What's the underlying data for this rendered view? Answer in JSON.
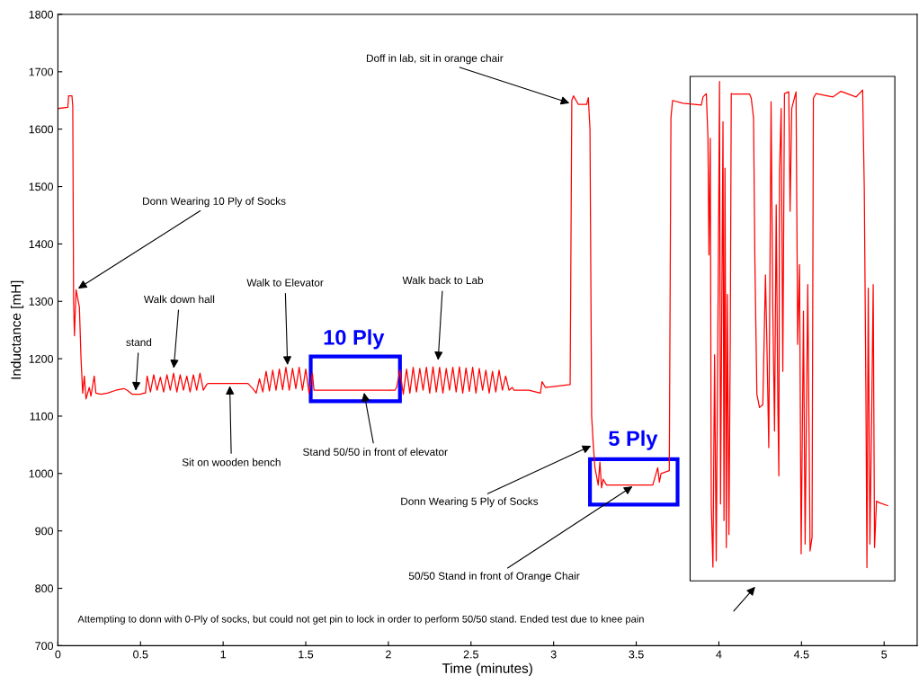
{
  "chart_data": {
    "type": "line",
    "xlabel": "Time (minutes)",
    "ylabel": "Inductance [mH]",
    "xlim": [
      0,
      5.2
    ],
    "ylim": [
      700,
      1800
    ],
    "xticks": [
      0,
      0.5,
      1,
      1.5,
      2,
      2.5,
      3,
      3.5,
      4,
      4.5,
      5
    ],
    "yticks": [
      700,
      800,
      900,
      1000,
      1100,
      1200,
      1300,
      1400,
      1500,
      1600,
      1700,
      1800
    ],
    "grid": false,
    "marker": "none",
    "line_style": "solid",
    "series": [
      {
        "color": "#ff0000",
        "x": [
          0,
          0.06,
          0.065,
          0.085,
          0.09,
          0.095,
          0.1,
          0.11,
          0.13,
          0.14,
          0.15,
          0.16,
          0.17,
          0.19,
          0.2,
          0.22,
          0.23,
          0.26,
          0.3,
          0.35,
          0.4,
          0.42,
          0.45,
          0.5,
          0.52,
          0.53,
          0.54,
          0.56,
          0.58,
          0.6,
          0.62,
          0.64,
          0.66,
          0.68,
          0.7,
          0.72,
          0.74,
          0.76,
          0.78,
          0.8,
          0.82,
          0.84,
          0.86,
          0.88,
          0.9,
          0.91,
          1.15,
          1.18,
          1.2,
          1.22,
          1.24,
          1.26,
          1.28,
          1.3,
          1.32,
          1.34,
          1.36,
          1.38,
          1.4,
          1.42,
          1.44,
          1.46,
          1.48,
          1.5,
          1.52,
          1.54,
          1.55,
          2.04,
          2.05,
          2.07,
          2.09,
          2.11,
          2.13,
          2.15,
          2.17,
          2.19,
          2.21,
          2.23,
          2.25,
          2.27,
          2.29,
          2.31,
          2.33,
          2.35,
          2.37,
          2.39,
          2.41,
          2.43,
          2.45,
          2.47,
          2.49,
          2.51,
          2.53,
          2.55,
          2.57,
          2.59,
          2.61,
          2.63,
          2.65,
          2.67,
          2.69,
          2.71,
          2.73,
          2.75,
          2.76,
          2.85,
          2.92,
          2.93,
          2.95,
          3.1,
          3.11,
          3.12,
          3.15,
          3.2,
          3.21,
          3.22,
          3.23,
          3.24,
          3.25,
          3.27,
          3.28,
          3.29,
          3.3,
          3.32,
          3.4,
          3.6,
          3.63,
          3.64,
          3.65,
          3.7,
          3.71,
          3.72,
          3.783,
          3.894,
          3.904,
          3.924,
          3.934,
          3.94,
          3.948,
          3.954,
          3.964,
          3.974,
          3.984,
          3.994,
          4.004,
          4.01,
          4.025,
          4.031,
          4.037,
          4.045,
          4.051,
          4.061,
          4.069,
          4.075,
          4.085,
          4.186,
          4.196,
          4.21,
          4.218,
          4.23,
          4.246,
          4.266,
          4.282,
          4.29,
          4.302,
          4.316,
          4.326,
          4.337,
          4.347,
          4.357,
          4.363,
          4.367,
          4.377,
          4.387,
          4.397,
          4.423,
          4.431,
          4.441,
          4.467,
          4.477,
          4.488,
          4.498,
          4.512,
          4.522,
          4.538,
          4.552,
          4.564,
          4.572,
          4.588,
          4.689,
          4.739,
          4.83,
          4.87,
          4.88,
          4.89,
          4.896,
          4.904,
          4.914,
          4.924,
          4.934,
          4.942,
          4.954,
          4.971,
          5.021
        ],
        "values": [
          1636,
          1638,
          1658,
          1658,
          1640,
          1300,
          1240,
          1320,
          1290,
          1200,
          1140,
          1170,
          1130,
          1150,
          1135,
          1170,
          1140,
          1138,
          1140,
          1145,
          1148,
          1145,
          1138,
          1138,
          1140,
          1140,
          1170,
          1142,
          1172,
          1145,
          1168,
          1142,
          1172,
          1145,
          1175,
          1142,
          1172,
          1145,
          1170,
          1142,
          1172,
          1145,
          1175,
          1145,
          1155,
          1157,
          1157,
          1148,
          1140,
          1165,
          1142,
          1178,
          1144,
          1180,
          1145,
          1182,
          1146,
          1185,
          1145,
          1183,
          1148,
          1185,
          1145,
          1182,
          1140,
          1175,
          1145,
          1145,
          1150,
          1180,
          1138,
          1182,
          1140,
          1185,
          1142,
          1183,
          1145,
          1185,
          1140,
          1186,
          1142,
          1185,
          1140,
          1183,
          1145,
          1185,
          1142,
          1186,
          1140,
          1184,
          1143,
          1185,
          1140,
          1183,
          1145,
          1180,
          1140,
          1178,
          1142,
          1180,
          1145,
          1170,
          1145,
          1150,
          1145,
          1145,
          1140,
          1160,
          1150,
          1155,
          1650,
          1658,
          1643,
          1643,
          1655,
          1600,
          1100,
          1050,
          1010,
          980,
          1020,
          975,
          990,
          980,
          980,
          980,
          1010,
          985,
          1000,
          1005,
          1620,
          1650,
          1645,
          1642,
          1656,
          1662,
          1584,
          1381,
          1584,
          947,
          837,
          1207,
          848,
          1242,
          1683,
          947,
          1613,
          918,
          1532,
          871,
          1312,
          894,
          1236,
          1662,
          1661,
          1661,
          1654,
          1619,
          1370,
          1138,
          1115,
          1120,
          1346,
          1236,
          1045,
          1648,
          1294,
          1074,
          1468,
          1120,
          996,
          1526,
          1636,
          1178,
          1662,
          1665,
          1457,
          1636,
          1665,
          1225,
          1364,
          860,
          1283,
          877,
          1329,
          865,
          889,
          1654,
          1662,
          1656,
          1666,
          1656,
          1668,
          1497,
          1132,
          836,
          1323,
          877,
          1086,
          1329,
          871,
          952,
          949,
          944
        ]
      }
    ],
    "annotations": [
      {
        "text": "Doff in lab, sit in orange chair",
        "x": 3.11,
        "y": 1644
      },
      {
        "text": "Donn Wearing 10 Ply of Socks",
        "x": 0.11,
        "y": 1320
      },
      {
        "text": "Walk down hall",
        "x": 0.7,
        "y": 1179
      },
      {
        "text": "stand",
        "x": 0.47,
        "y": 1140
      },
      {
        "text": "Walk to Elevator",
        "x": 1.39,
        "y": 1185
      },
      {
        "text": "Walk back to Lab",
        "x": 2.3,
        "y": 1193
      },
      {
        "text": "Sit on wooden bench",
        "x": 1.04,
        "y": 1157
      },
      {
        "text": "Stand 50/50 in front of elevator",
        "x": 1.85,
        "y": 1145
      },
      {
        "text": "Donn Wearing 5 Ply of Socks",
        "x": 3.24,
        "y": 1050
      },
      {
        "text": "50/50 Stand in front of Orange Chair",
        "x": 3.49,
        "y": 980
      },
      "10 Ply",
      "5 Ply",
      "Attempting to donn with 0-Ply of socks, but could not get pin to lock in order to perform 50/50 stand. Ended test due to knee pain"
    ]
  }
}
